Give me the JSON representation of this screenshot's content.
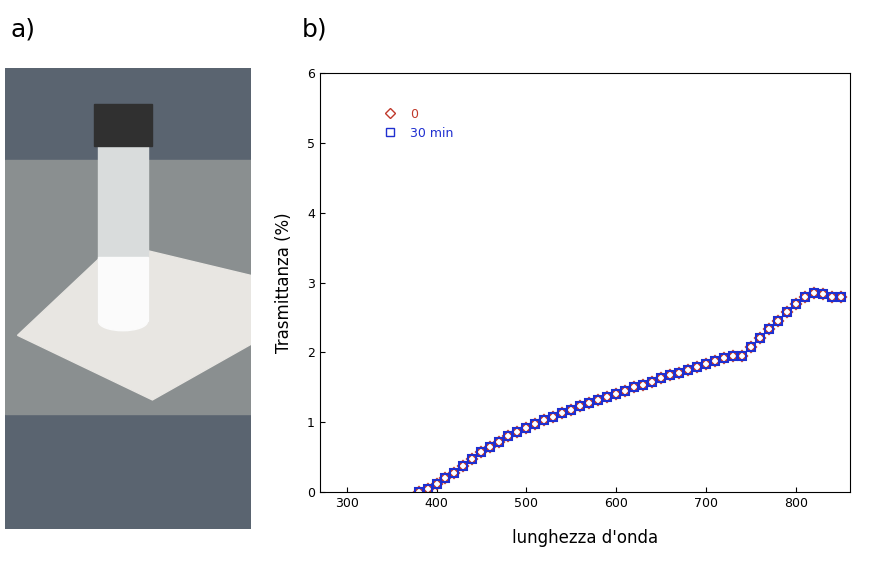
{
  "panel_labels": [
    "a)",
    "b)"
  ],
  "chart_data": {
    "type": "scatter",
    "x_label": "lunghezza d'onda",
    "y_label": "Trasmittanza (%)",
    "x": [
      380,
      390,
      400,
      410,
      420,
      430,
      440,
      450,
      460,
      470,
      480,
      490,
      500,
      510,
      520,
      530,
      540,
      550,
      560,
      570,
      580,
      590,
      600,
      610,
      620,
      630,
      640,
      650,
      660,
      670,
      680,
      690,
      700,
      710,
      720,
      730,
      740,
      750,
      760,
      770,
      780,
      790,
      800,
      810,
      820,
      830,
      840,
      850
    ],
    "series": [
      {
        "name": "0",
        "color": "#c0392b",
        "marker": "diamond",
        "line_style": "none",
        "values": [
          0,
          0.05,
          0.12,
          0.2,
          0.28,
          0.38,
          0.48,
          0.57,
          0.65,
          0.72,
          0.8,
          0.86,
          0.92,
          0.98,
          1.03,
          1.08,
          1.13,
          1.18,
          1.23,
          1.28,
          1.32,
          1.36,
          1.4,
          1.45,
          1.5,
          1.54,
          1.58,
          1.63,
          1.67,
          1.71,
          1.75,
          1.79,
          1.83,
          1.88,
          1.92,
          1.95,
          1.95,
          2.08,
          2.2,
          2.33,
          2.45,
          2.58,
          2.7,
          2.8,
          2.85,
          2.83,
          2.8,
          2.8
        ]
      },
      {
        "name": "30 min",
        "color": "#1f2fd0",
        "marker": "square",
        "line_style": "none",
        "values": [
          0,
          0.05,
          0.12,
          0.2,
          0.28,
          0.38,
          0.48,
          0.57,
          0.65,
          0.72,
          0.8,
          0.86,
          0.92,
          0.98,
          1.03,
          1.08,
          1.13,
          1.18,
          1.23,
          1.28,
          1.32,
          1.36,
          1.4,
          1.45,
          1.5,
          1.54,
          1.58,
          1.63,
          1.67,
          1.71,
          1.75,
          1.79,
          1.83,
          1.88,
          1.92,
          1.95,
          1.95,
          2.08,
          2.2,
          2.33,
          2.45,
          2.58,
          2.7,
          2.8,
          2.85,
          2.83,
          2.8,
          2.8
        ]
      }
    ],
    "xlim": [
      270,
      860
    ],
    "xticks": [
      300,
      400,
      500,
      600,
      700,
      800
    ],
    "ylim": [
      0,
      6
    ],
    "yticks": [
      0,
      1,
      2,
      3,
      4,
      5,
      6
    ],
    "grid": false,
    "legend": "upper left"
  }
}
